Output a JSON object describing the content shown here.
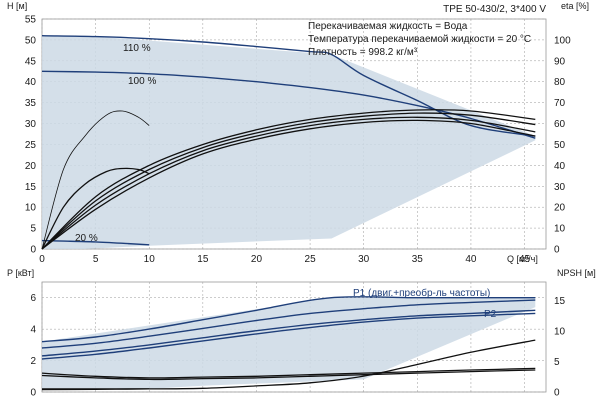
{
  "colors": {
    "region_fill": "#cdd9e5",
    "region_light": "#e6eef6",
    "curve_dark": "#1f3f7a",
    "curve_black": "#111111",
    "grid": "#9a9a9a",
    "background": "#ffffff"
  },
  "chart_data": [
    {
      "type": "line",
      "title": "TPE 50-430/2, 3*400 V",
      "xlabel": "Q [м³/ч]",
      "xlim": [
        0,
        47
      ],
      "xticks": [
        0,
        5,
        10,
        15,
        20,
        25,
        30,
        35,
        40,
        45
      ],
      "ylabel_left": "H [м]",
      "ylim_left": [
        0,
        55
      ],
      "yticks_left": [
        0,
        5,
        10,
        15,
        20,
        25,
        30,
        35,
        40,
        45,
        50,
        55
      ],
      "ylabel_right": "eta [%]",
      "ylim_right": [
        0,
        110
      ],
      "yticks_right": [
        0,
        10,
        20,
        30,
        40,
        50,
        60,
        70,
        80,
        90,
        100
      ],
      "grid": true,
      "info_lines": [
        "Перекачиваемая жидкость = Вода",
        "Температура перекачиваемой жидкости = 20 °C",
        "Плотность = 998.2 кг/м³"
      ],
      "operating_region": {
        "x": [
          0,
          4,
          27,
          46,
          46,
          27,
          10,
          4,
          0
        ],
        "y": [
          51,
          51,
          46.5,
          27,
          26,
          2.5,
          0.8,
          0,
          0
        ]
      },
      "series": [
        {
          "name": "110 %",
          "axis": "left",
          "x": [
            0,
            5,
            10,
            15,
            20,
            25,
            27,
            30,
            35,
            40,
            46
          ],
          "y": [
            51,
            50.8,
            50.3,
            49.5,
            48.4,
            47.2,
            46.5,
            41.5,
            35.5,
            29.5,
            27
          ]
        },
        {
          "name": "100 %",
          "axis": "left",
          "x": [
            0,
            5,
            10,
            15,
            20,
            25,
            30,
            35,
            40,
            46
          ],
          "y": [
            42.5,
            42.3,
            41.9,
            41.1,
            40,
            38.6,
            36.8,
            34.3,
            31.2,
            26.5
          ]
        },
        {
          "name": "20 %",
          "axis": "left",
          "x": [
            0,
            2,
            5,
            8,
            10
          ],
          "y": [
            2,
            1.9,
            1.7,
            1.3,
            1
          ]
        },
        {
          "axis": "right",
          "x": [
            0,
            2,
            4,
            6,
            7.5,
            9,
            10
          ],
          "y": [
            0,
            38,
            54,
            64,
            66,
            63,
            59
          ]
        },
        {
          "axis": "right",
          "x": [
            0,
            2,
            4,
            6,
            7.5,
            9,
            10
          ],
          "y": [
            0,
            20,
            31,
            37,
            38.5,
            38,
            36
          ]
        },
        {
          "axis": "right",
          "x": [
            0,
            5,
            10,
            15,
            20,
            25,
            30,
            35,
            40,
            46
          ],
          "y": [
            0,
            25,
            40,
            50,
            57,
            62,
            65,
            66.5,
            66,
            62
          ]
        },
        {
          "axis": "right",
          "x": [
            0,
            5,
            10,
            15,
            20,
            25,
            30,
            35,
            40,
            46
          ],
          "y": [
            0,
            23,
            38,
            48.5,
            55.5,
            60.5,
            63.5,
            65,
            64,
            59.5
          ]
        },
        {
          "axis": "right",
          "x": [
            0,
            5,
            10,
            15,
            20,
            25,
            30,
            35,
            40,
            46
          ],
          "y": [
            0,
            21,
            36,
            47,
            54,
            59,
            62,
            63,
            61.5,
            56
          ]
        },
        {
          "axis": "right",
          "x": [
            0,
            5,
            10,
            15,
            20,
            25,
            30,
            35,
            40,
            46
          ],
          "y": [
            0,
            19,
            34,
            45.5,
            52.5,
            57.5,
            60.5,
            61.5,
            60,
            54
          ]
        }
      ]
    },
    {
      "type": "line",
      "xlim": [
        0,
        47
      ],
      "ylabel_left": "P [кВт]",
      "ylim_left": [
        0,
        7
      ],
      "yticks_left": [
        0,
        2,
        4,
        6
      ],
      "ylabel_right": "NPSH [м]",
      "ylim_right": [
        0,
        18
      ],
      "yticks_right": [
        0,
        5,
        10,
        15
      ],
      "grid": true,
      "operating_region": {
        "x": [
          0,
          27,
          46,
          46,
          30,
          15,
          10,
          0
        ],
        "y": [
          3.2,
          6,
          6,
          5.4,
          0.8,
          0.4,
          0.2,
          0.2
        ]
      },
      "series": [
        {
          "name": "P1 (двиг.+преобр-ль частоты)",
          "axis": "left",
          "x": [
            0,
            5,
            10,
            15,
            20,
            27,
            35,
            40,
            46
          ],
          "y": [
            3.2,
            3.5,
            4,
            4.6,
            5.2,
            6,
            6,
            6,
            6
          ]
        },
        {
          "axis": "left",
          "x": [
            0,
            5,
            10,
            15,
            20,
            25,
            30,
            35,
            40,
            46
          ],
          "y": [
            2.8,
            3.1,
            3.55,
            4.05,
            4.55,
            5,
            5.3,
            5.55,
            5.7,
            5.85
          ]
        },
        {
          "name": "P2",
          "axis": "left",
          "x": [
            0,
            5,
            10,
            15,
            20,
            25,
            30,
            35,
            40,
            46
          ],
          "y": [
            2.3,
            2.6,
            3,
            3.45,
            3.9,
            4.3,
            4.6,
            4.85,
            5,
            5.2
          ]
        },
        {
          "axis": "left",
          "x": [
            0,
            5,
            10,
            15,
            20,
            25,
            30,
            35,
            40,
            46
          ],
          "y": [
            2.1,
            2.4,
            2.8,
            3.25,
            3.7,
            4.1,
            4.45,
            4.7,
            4.85,
            5
          ]
        },
        {
          "axis": "left",
          "x": [
            0,
            5,
            10,
            15,
            20,
            25,
            30,
            35,
            40,
            46
          ],
          "y": [
            1.2,
            1,
            0.9,
            0.95,
            1,
            1.1,
            1.2,
            1.3,
            1.4,
            1.5
          ]
        },
        {
          "axis": "left",
          "x": [
            0,
            5,
            10,
            15,
            20,
            25,
            30,
            35,
            40,
            46
          ],
          "y": [
            1.05,
            0.9,
            0.8,
            0.85,
            0.9,
            1,
            1.1,
            1.2,
            1.3,
            1.4
          ]
        },
        {
          "axis": "left",
          "x": [
            0,
            5,
            10
          ],
          "y": [
            0.15,
            0.17,
            0.2
          ]
        },
        {
          "axis": "right",
          "x": [
            0,
            10,
            15,
            20,
            25,
            30,
            35,
            40,
            46
          ],
          "y": [
            0.5,
            0.5,
            0.6,
            1,
            1.5,
            2.6,
            4.5,
            6.5,
            8.5
          ]
        }
      ]
    }
  ]
}
